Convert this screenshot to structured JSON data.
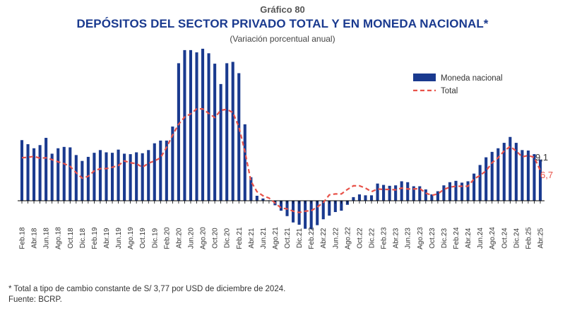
{
  "header": {
    "supertitle": "Gráfico 80",
    "title": "DEPÓSITOS DEL SECTOR PRIVADO TOTAL Y EN MONEDA NACIONAL*",
    "subtitle": "(Variación porcentual anual)"
  },
  "notes": {
    "footnote": "* Total a tipo de cambio constante de S/ 3,77 por USD de diciembre de 2024.",
    "source": "Fuente: BCRP."
  },
  "colors": {
    "bars": "#1a3a8f",
    "line": "#e8534a",
    "axis": "#000000"
  },
  "chart_data": {
    "type": "bar",
    "title": "DEPÓSITOS DEL SECTOR PRIVADO TOTAL Y EN MONEDA NACIONAL*",
    "subtitle": "(Variación porcentual anual)",
    "xlabel": "",
    "ylabel": "",
    "y_axis_shown": false,
    "grid": false,
    "legend_position": "top-right",
    "ylim": [
      -8,
      39
    ],
    "x_tick_labels": [
      "Feb.18",
      "Abr.18",
      "Jun.18",
      "Ago.18",
      "Oct.18",
      "Dic.18",
      "Feb.19",
      "Abr.19",
      "Jun.19",
      "Ago.19",
      "Oct.19",
      "Dic.19",
      "Feb.20",
      "Abr.20",
      "Jun.20",
      "Ago.20",
      "Oct.20",
      "Dic.20",
      "Feb.21",
      "Abr.21",
      "Jun.21",
      "Ago.21",
      "Oct.21",
      "Dic.21",
      "Feb.22",
      "Abr.22",
      "Jun.22",
      "Ago.22",
      "Oct.22",
      "Dic.22",
      "Feb.23",
      "Abr.23",
      "Jun.23",
      "Ago.23",
      "Oct.23",
      "Dic.23",
      "Feb.24",
      "Abr.24",
      "Jun.24",
      "Ago.24",
      "Oct.24",
      "Dic.24",
      "Feb.25",
      "Abr.25"
    ],
    "end_labels": {
      "moneda_nacional": "9,1",
      "total": "6,7"
    },
    "series": [
      {
        "name": "Moneda nacional",
        "kind": "bar",
        "x": [
          "Feb.18",
          "Mar.18",
          "Abr.18",
          "May.18",
          "Jun.18",
          "Jul.18",
          "Ago.18",
          "Sep.18",
          "Oct.18",
          "Nov.18",
          "Dic.18",
          "Ene.19",
          "Feb.19",
          "Mar.19",
          "Abr.19",
          "May.19",
          "Jun.19",
          "Jul.19",
          "Ago.19",
          "Sep.19",
          "Oct.19",
          "Nov.19",
          "Dic.19",
          "Ene.20",
          "Feb.20",
          "Mar.20",
          "Abr.20",
          "May.20",
          "Jun.20",
          "Jul.20",
          "Ago.20",
          "Sep.20",
          "Oct.20",
          "Nov.20",
          "Dic.20",
          "Ene.21",
          "Feb.21",
          "Mar.21",
          "Abr.21",
          "May.21",
          "Jun.21",
          "Jul.21",
          "Ago.21",
          "Sep.21",
          "Oct.21",
          "Nov.21",
          "Dic.21",
          "Ene.22",
          "Feb.22",
          "Mar.22",
          "Abr.22",
          "May.22",
          "Jun.22",
          "Jul.22",
          "Ago.22",
          "Sep.22",
          "Oct.22",
          "Nov.22",
          "Dic.22",
          "Ene.23",
          "Feb.23",
          "Mar.23",
          "Abr.23",
          "May.23",
          "Jun.23",
          "Jul.23",
          "Ago.23",
          "Sep.23",
          "Oct.23",
          "Nov.23",
          "Dic.23",
          "Ene.24",
          "Feb.24",
          "Mar.24",
          "Abr.24",
          "May.24",
          "Jun.24",
          "Jul.24",
          "Ago.24",
          "Sep.24",
          "Oct.24",
          "Nov.24",
          "Dic.24",
          "Ene.25",
          "Feb.25",
          "Mar.25",
          "Abr.25"
        ],
        "values": [
          13.4,
          12.5,
          11.6,
          12.3,
          13.9,
          10.4,
          11.6,
          11.9,
          11.8,
          10.1,
          8.8,
          9.7,
          10.6,
          11.2,
          10.7,
          10.6,
          11.3,
          10.4,
          10.3,
          10.7,
          10.5,
          11.2,
          12.7,
          13.3,
          13.3,
          16.4,
          30.4,
          33.3,
          33.3,
          32.8,
          33.6,
          32.6,
          30.3,
          25.8,
          30.4,
          30.7,
          28.2,
          16.9,
          5.2,
          1.1,
          0.5,
          0.1,
          -1.0,
          -2.2,
          -3.4,
          -4.8,
          -5.3,
          -6.2,
          -6.3,
          -5.4,
          -4.1,
          -3.3,
          -2.5,
          -2.2,
          -0.9,
          0.8,
          1.4,
          1.2,
          1.2,
          3.8,
          3.5,
          3.3,
          3.4,
          4.3,
          4.1,
          3.2,
          3.2,
          2.5,
          1.4,
          2.1,
          3.4,
          4.1,
          4.4,
          4.0,
          4.3,
          6.0,
          7.9,
          9.6,
          10.8,
          11.6,
          12.8,
          14.1,
          12.8,
          11.2,
          11.1,
          10.3,
          9.1
        ]
      },
      {
        "name": "Total",
        "kind": "line",
        "style": "dashed",
        "x": [
          "Feb.18",
          "Mar.18",
          "Abr.18",
          "May.18",
          "Jun.18",
          "Jul.18",
          "Ago.18",
          "Sep.18",
          "Oct.18",
          "Nov.18",
          "Dic.18",
          "Ene.19",
          "Feb.19",
          "Mar.19",
          "Abr.19",
          "May.19",
          "Jun.19",
          "Jul.19",
          "Ago.19",
          "Sep.19",
          "Oct.19",
          "Nov.19",
          "Dic.19",
          "Ene.20",
          "Feb.20",
          "Mar.20",
          "Abr.20",
          "May.20",
          "Jun.20",
          "Jul.20",
          "Ago.20",
          "Sep.20",
          "Oct.20",
          "Nov.20",
          "Dic.20",
          "Ene.21",
          "Feb.21",
          "Mar.21",
          "Abr.21",
          "May.21",
          "Jun.21",
          "Jul.21",
          "Ago.21",
          "Sep.21",
          "Oct.21",
          "Nov.21",
          "Dic.21",
          "Ene.22",
          "Feb.22",
          "Mar.22",
          "Abr.22",
          "May.22",
          "Jun.22",
          "Jul.22",
          "Ago.22",
          "Sep.22",
          "Oct.22",
          "Nov.22",
          "Dic.22",
          "Ene.23",
          "Feb.23",
          "Mar.23",
          "Abr.23",
          "May.23",
          "Jun.23",
          "Jul.23",
          "Ago.23",
          "Sep.23",
          "Oct.23",
          "Nov.23",
          "Dic.23",
          "Ene.24",
          "Feb.24",
          "Mar.24",
          "Abr.24",
          "May.24",
          "Jun.24",
          "Jul.24",
          "Ago.24",
          "Sep.24",
          "Oct.24",
          "Nov.24",
          "Dic.24",
          "Ene.25",
          "Feb.25",
          "Mar.25",
          "Abr.25"
        ],
        "values": [
          9.5,
          9.6,
          9.8,
          9.4,
          9.5,
          9.1,
          8.6,
          8.2,
          7.6,
          6.2,
          5.0,
          5.4,
          6.6,
          7.1,
          7.1,
          7.4,
          7.8,
          8.8,
          8.4,
          8.2,
          7.4,
          8.3,
          8.8,
          9.5,
          11.8,
          14.5,
          16.9,
          18.5,
          19.2,
          20.3,
          20.3,
          19.3,
          18.4,
          20.0,
          20.2,
          19.5,
          16.3,
          10.9,
          4.3,
          2.0,
          1.1,
          0.6,
          -0.5,
          -1.6,
          -1.8,
          -2.3,
          -2.6,
          -2.3,
          -2.2,
          -1.4,
          -0.4,
          1.3,
          1.5,
          1.5,
          2.5,
          3.3,
          3.3,
          2.8,
          2.0,
          2.6,
          2.5,
          2.5,
          2.4,
          2.8,
          2.6,
          2.6,
          2.7,
          1.7,
          1.2,
          1.5,
          2.5,
          3.0,
          3.2,
          3.2,
          3.2,
          4.8,
          5.6,
          6.6,
          8.4,
          9.5,
          11.0,
          12.0,
          11.0,
          9.7,
          10.0,
          9.6,
          6.7
        ]
      }
    ]
  }
}
